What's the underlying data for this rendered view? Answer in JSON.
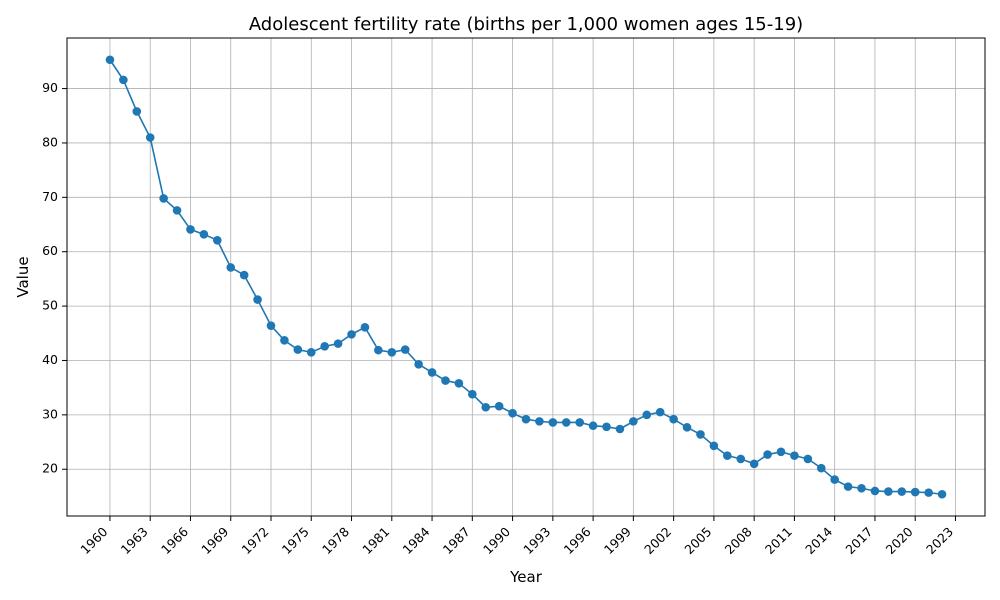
{
  "chart_data": {
    "type": "line",
    "title": "Adolescent fertility rate (births per 1,000 women ages 15-19)",
    "xlabel": "Year",
    "ylabel": "Value",
    "x": [
      1960,
      1961,
      1962,
      1963,
      1964,
      1965,
      1966,
      1967,
      1968,
      1969,
      1970,
      1971,
      1972,
      1973,
      1974,
      1975,
      1976,
      1977,
      1978,
      1979,
      1980,
      1981,
      1982,
      1983,
      1984,
      1985,
      1986,
      1987,
      1988,
      1989,
      1990,
      1991,
      1992,
      1993,
      1994,
      1995,
      1996,
      1997,
      1998,
      1999,
      2000,
      2001,
      2002,
      2003,
      2004,
      2005,
      2006,
      2007,
      2008,
      2009,
      2010,
      2011,
      2012,
      2013,
      2014,
      2015,
      2016,
      2017,
      2018,
      2019,
      2020,
      2021,
      2022
    ],
    "series": [
      {
        "values": [
          95.3,
          91.6,
          85.8,
          81.0,
          69.8,
          67.6,
          64.1,
          63.2,
          62.1,
          57.1,
          55.7,
          51.2,
          46.4,
          43.7,
          42.0,
          41.5,
          42.6,
          43.1,
          44.8,
          46.1,
          41.9,
          41.5,
          42.0,
          39.3,
          37.8,
          36.3,
          35.8,
          33.8,
          31.4,
          31.6,
          30.3,
          29.2,
          28.8,
          28.6,
          28.6,
          28.6,
          28.0,
          27.8,
          27.4,
          28.8,
          30.0,
          30.5,
          29.2,
          27.7,
          26.4,
          24.3,
          22.5,
          21.9,
          21.0,
          22.7,
          23.2,
          22.5,
          21.9,
          20.2,
          18.1,
          16.8,
          16.5,
          16.0,
          15.9,
          15.9,
          15.8,
          15.7,
          15.4
        ],
        "color": "#1f77b4"
      }
    ],
    "x_ticks": [
      "1960",
      "1963",
      "1966",
      "1969",
      "1972",
      "1975",
      "1978",
      "1981",
      "1984",
      "1987",
      "1990",
      "1993",
      "1996",
      "1999",
      "2002",
      "2005",
      "2008",
      "2011",
      "2014",
      "2017",
      "2020",
      "2023"
    ],
    "y_ticks": [
      "20",
      "30",
      "40",
      "50",
      "60",
      "70",
      "80",
      "90"
    ],
    "xlim": [
      1956.8,
      2025.2
    ],
    "ylim": [
      11.4,
      99.3
    ],
    "grid": true,
    "legend": "none"
  }
}
